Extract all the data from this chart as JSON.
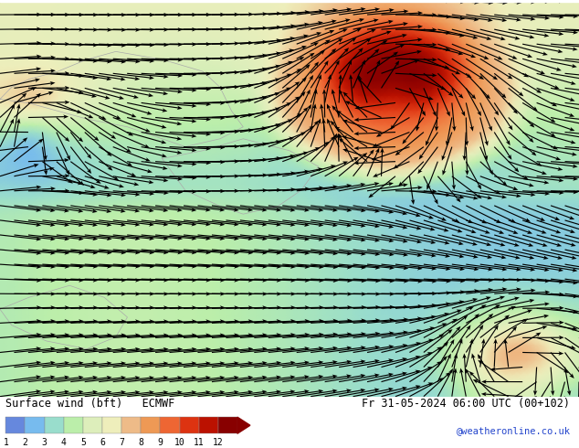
{
  "title_left": "Surface wind (bft)   ECMWF",
  "title_right": "Fr 31-05-2024 06:00 UTC (00+102)",
  "credit": "@weatheronline.co.uk",
  "colorbar_levels": [
    1,
    2,
    3,
    4,
    5,
    6,
    7,
    8,
    9,
    10,
    11,
    12
  ],
  "colorbar_colors": [
    "#6688dd",
    "#77bbee",
    "#99ddcc",
    "#bbeeaa",
    "#ddeebb",
    "#eeeebb",
    "#eebb88",
    "#ee9955",
    "#ee6633",
    "#dd3311",
    "#bb1100",
    "#880000"
  ],
  "bg_color": "#ffffff",
  "map_bg": "#aaccee",
  "wind_color": "#000000",
  "fig_width": 6.34,
  "fig_height": 4.9,
  "dpi": 100
}
